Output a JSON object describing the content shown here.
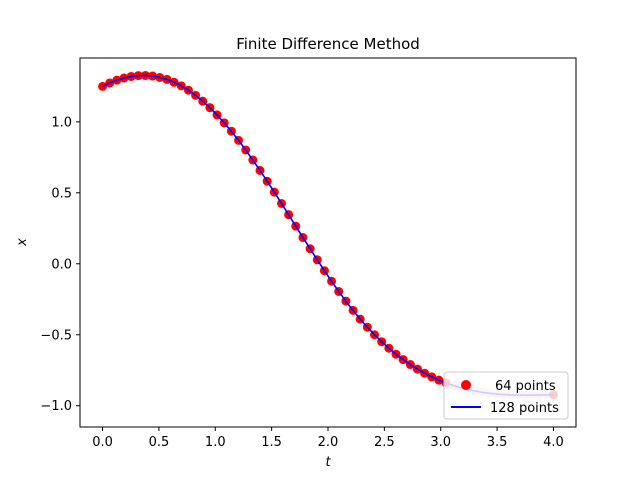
{
  "chart_data": {
    "type": "line",
    "title": "Finite Difference Method",
    "xlabel": "t",
    "ylabel": "x",
    "xlim": [
      -0.2,
      4.2
    ],
    "ylim": [
      -1.15,
      1.45
    ],
    "xticks": [
      0.0,
      0.5,
      1.0,
      1.5,
      2.0,
      2.5,
      3.0,
      3.5,
      4.0
    ],
    "xtick_labels": [
      "0.0",
      "0.5",
      "1.0",
      "1.5",
      "2.0",
      "2.5",
      "3.0",
      "3.5",
      "4.0"
    ],
    "yticks": [
      -1.0,
      -0.5,
      0.0,
      0.5,
      1.0
    ],
    "ytick_labels": [
      "−1.0",
      "−0.5",
      "0.0",
      "0.5",
      "1.0"
    ],
    "grid": false,
    "legend_position": "bottom-right",
    "series": [
      {
        "name": "64 points",
        "style": "markers",
        "color": "#ff0000",
        "t_range": [
          0,
          4
        ],
        "n_points": 64,
        "x": [
          0.0,
          0.0635,
          0.127,
          0.1905,
          0.254,
          0.3175,
          0.381,
          0.4444,
          0.5079,
          0.5714,
          0.6349,
          0.6984,
          0.7619,
          0.8254,
          0.8889,
          0.9524,
          1.0159,
          1.0794,
          1.1429,
          1.2063,
          1.2698,
          1.3333,
          1.3968,
          1.4603,
          1.5238,
          1.5873,
          1.6508,
          1.7143,
          1.7778,
          1.8413,
          1.9048,
          1.9683,
          2.0317,
          2.0952,
          2.1587,
          2.2222,
          2.2857,
          2.3492,
          2.4127,
          2.4762,
          2.5397,
          2.6032,
          2.6667,
          2.7302,
          2.7937,
          2.8571,
          2.9206,
          2.9841,
          3.0476,
          3.1111,
          3.1746,
          3.2381,
          3.3016,
          3.3651,
          3.4286,
          3.4921,
          3.5556,
          3.619,
          3.6825,
          3.746,
          3.8095,
          3.873,
          3.9365,
          4.0
        ],
        "y": [
          1.25,
          1.274,
          1.294,
          1.309,
          1.32,
          1.326,
          1.327,
          1.323,
          1.313,
          1.299,
          1.279,
          1.254,
          1.223,
          1.187,
          1.146,
          1.1,
          1.049,
          0.993,
          0.934,
          0.87,
          0.802,
          0.731,
          0.658,
          0.582,
          0.505,
          0.425,
          0.346,
          0.265,
          0.185,
          0.106,
          0.028,
          -0.049,
          -0.123,
          -0.195,
          -0.263,
          -0.328,
          -0.39,
          -0.447,
          -0.5,
          -0.549,
          -0.595,
          -0.637,
          -0.675,
          -0.71,
          -0.742,
          -0.771,
          -0.797,
          -0.82,
          -0.84,
          -0.858,
          -0.873,
          -0.886,
          -0.896,
          -0.905,
          -0.912,
          -0.917,
          -0.921,
          -0.924,
          -0.925,
          -0.926,
          -0.926,
          -0.925,
          -0.924,
          -0.922
        ]
      },
      {
        "name": "128 points",
        "style": "line",
        "color": "#0000ff"
      }
    ],
    "faded_points_note": "pale markers near lower right",
    "pale_color": "#f4c6d8"
  }
}
